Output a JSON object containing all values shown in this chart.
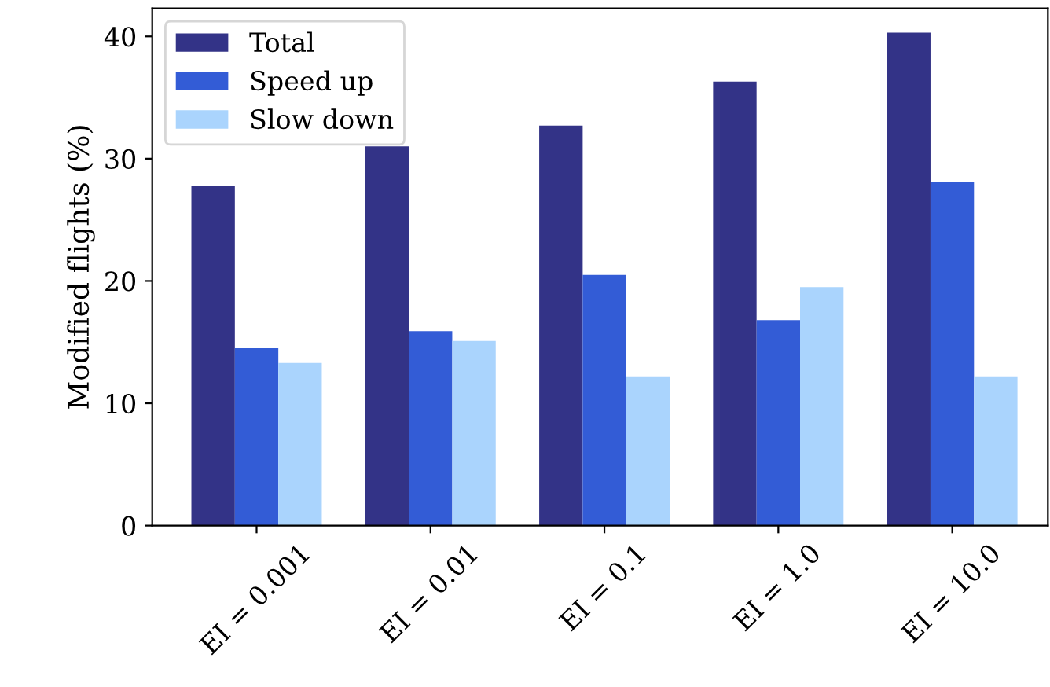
{
  "chart_data": {
    "type": "bar",
    "ylabel": "Modified flights (%)",
    "categories": [
      "EI = 0.001",
      "EI = 0.01",
      "EI = 0.1",
      "EI = 1.0",
      "EI = 10.0"
    ],
    "series": [
      {
        "name": "Total",
        "color": "#333387",
        "values": [
          27.8,
          31.0,
          32.7,
          36.3,
          40.3
        ]
      },
      {
        "name": "Speed up",
        "color": "#335cd6",
        "values": [
          14.5,
          15.9,
          20.5,
          16.8,
          28.1
        ]
      },
      {
        "name": "Slow down",
        "color": "#aad4fd",
        "values": [
          13.3,
          15.1,
          12.2,
          19.5,
          12.2
        ]
      }
    ],
    "ylim": [
      0,
      42.3
    ],
    "yticks": [
      0,
      10,
      20,
      30,
      40
    ],
    "grid": false,
    "legend": "top left"
  }
}
